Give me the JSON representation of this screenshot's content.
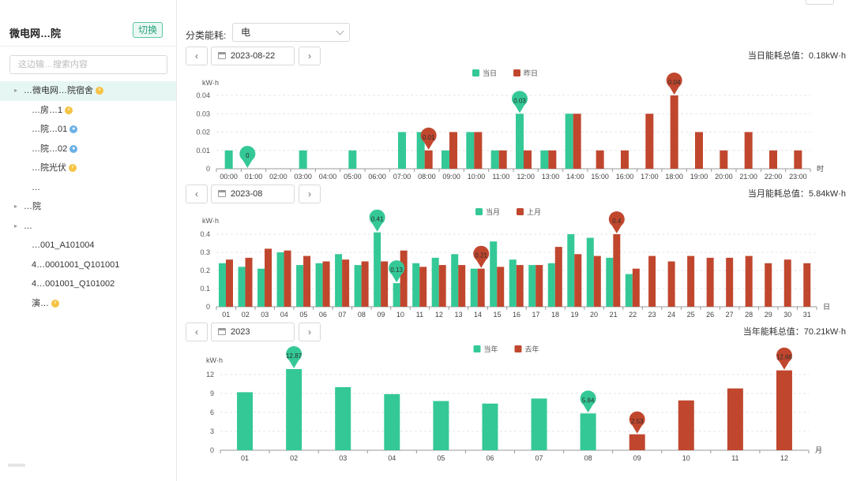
{
  "sidebar": {
    "title": "微电网…院",
    "switch_label": "切换",
    "search_placeholder": "这边输…搜索内容",
    "items": [
      {
        "label": "…微电网…院宿舍",
        "icon": "bolt-icon",
        "arrow": "▸",
        "selected": true
      },
      {
        "label": "…房…1",
        "icon": "bolt-icon"
      },
      {
        "label": "…院…01",
        "icon": "water-drop-icon"
      },
      {
        "label": "…院…02",
        "icon": "water-drop-icon"
      },
      {
        "label": "…院光伏",
        "icon": "bolt-icon"
      },
      {
        "label": "…"
      },
      {
        "label": "…院",
        "arrow": "▸"
      },
      {
        "label": "…",
        "arrow": "▸"
      },
      {
        "label": "…001_A101004"
      },
      {
        "label": "4…0001001_Q101001"
      },
      {
        "label": "4…001001_Q101002"
      },
      {
        "label": "演…",
        "icon": "bolt-icon"
      }
    ]
  },
  "filter": {
    "label": "分类能耗:",
    "value": "电"
  },
  "panels": [
    {
      "date": "2023-08-22",
      "total": "当日能耗总值：0.18kW·h"
    },
    {
      "date": "2023-08",
      "total": "当月能耗总值：5.84kW·h"
    },
    {
      "date": "2023",
      "total": "当年能耗总值：70.21kW·h"
    }
  ],
  "colors": {
    "current": "#34c897",
    "previous": "#c0472e"
  },
  "chart_data": [
    {
      "type": "bar",
      "legend": [
        "当日",
        "昨日"
      ],
      "ylabel": "kW·h",
      "xlabel": "时",
      "ylim": [
        0,
        0.04
      ],
      "yticks": [
        "0",
        "0.01",
        "0.02",
        "0.03",
        "0.04"
      ],
      "categories": [
        "00:00",
        "01:00",
        "02:00",
        "03:00",
        "04:00",
        "05:00",
        "06:00",
        "07:00",
        "08:00",
        "09:00",
        "10:00",
        "11:00",
        "12:00",
        "13:00",
        "14:00",
        "15:00",
        "16:00",
        "17:00",
        "18:00",
        "19:00",
        "20:00",
        "21:00",
        "22:00",
        "23:00"
      ],
      "series": [
        {
          "name": "当日",
          "values": [
            0.01,
            0,
            0,
            0.01,
            0,
            0.01,
            0,
            0.02,
            0.02,
            0.01,
            0.02,
            0.01,
            0.03,
            0.01,
            0.03,
            null,
            null,
            null,
            null,
            null,
            null,
            null,
            null,
            null
          ]
        },
        {
          "name": "昨日",
          "values": [
            0,
            0,
            0,
            0,
            0,
            0,
            0,
            0,
            0.01,
            0.02,
            0.02,
            0.01,
            0.01,
            0.01,
            0.03,
            0.01,
            0.01,
            0.03,
            0.04,
            0.02,
            0.01,
            0.02,
            0.01,
            0.01
          ]
        }
      ],
      "markers": [
        {
          "series": 0,
          "index": 1,
          "label": "0"
        },
        {
          "series": 1,
          "index": 8,
          "label": "0.01"
        },
        {
          "series": 0,
          "index": 12,
          "label": "0.03"
        },
        {
          "series": 1,
          "index": 18,
          "label": "0.04"
        }
      ]
    },
    {
      "type": "bar",
      "legend": [
        "当月",
        "上月"
      ],
      "ylabel": "kW·h",
      "xlabel": "日",
      "ylim": [
        0,
        0.4
      ],
      "yticks": [
        "0",
        "0.1",
        "0.2",
        "0.3",
        "0.4"
      ],
      "categories": [
        "01",
        "02",
        "03",
        "04",
        "05",
        "06",
        "07",
        "08",
        "09",
        "10",
        "11",
        "12",
        "13",
        "14",
        "15",
        "16",
        "17",
        "18",
        "19",
        "20",
        "21",
        "22",
        "23",
        "24",
        "25",
        "26",
        "27",
        "28",
        "29",
        "30",
        "31"
      ],
      "series": [
        {
          "name": "当月",
          "values": [
            0.24,
            0.22,
            0.21,
            0.3,
            0.23,
            0.24,
            0.29,
            0.23,
            0.41,
            0.13,
            0.24,
            0.27,
            0.29,
            0.21,
            0.36,
            0.26,
            0.23,
            0.24,
            0.4,
            0.38,
            0.27,
            0.18,
            null,
            null,
            null,
            null,
            null,
            null,
            null,
            null,
            null
          ]
        },
        {
          "name": "上月",
          "values": [
            0.26,
            0.27,
            0.32,
            0.31,
            0.28,
            0.25,
            0.26,
            0.25,
            0.25,
            0.31,
            0.22,
            0.23,
            0.23,
            0.21,
            0.22,
            0.23,
            0.23,
            0.33,
            0.29,
            0.28,
            0.4,
            0.21,
            0.28,
            0.25,
            0.28,
            0.27,
            0.27,
            0.28,
            0.24,
            0.26,
            0.24
          ]
        }
      ],
      "markers": [
        {
          "series": 0,
          "index": 8,
          "label": "0.41"
        },
        {
          "series": 0,
          "index": 9,
          "label": "0.13"
        },
        {
          "series": 1,
          "index": 13,
          "label": "0.21"
        },
        {
          "series": 1,
          "index": 20,
          "label": "0.4"
        }
      ]
    },
    {
      "type": "bar",
      "legend": [
        "当年",
        "去年"
      ],
      "ylabel": "kW·h",
      "xlabel": "月",
      "ylim": [
        0,
        14
      ],
      "yticks": [
        "0",
        "3",
        "6",
        "9",
        "12"
      ],
      "ytick_values": [
        0,
        3,
        6,
        9,
        12
      ],
      "categories": [
        "01",
        "02",
        "03",
        "04",
        "05",
        "06",
        "07",
        "08",
        "09",
        "10",
        "11",
        "12"
      ],
      "series": [
        {
          "name": "当年",
          "values": [
            9.2,
            12.87,
            10,
            8.9,
            7.8,
            7.4,
            8.2,
            5.84,
            null,
            null,
            null,
            null
          ]
        },
        {
          "name": "去年",
          "values": [
            null,
            null,
            null,
            null,
            null,
            null,
            null,
            null,
            2.53,
            7.9,
            9.8,
            12.66
          ]
        }
      ],
      "markers": [
        {
          "series": 0,
          "index": 1,
          "label": "12.87"
        },
        {
          "series": 0,
          "index": 7,
          "label": "5.84"
        },
        {
          "series": 1,
          "index": 8,
          "label": "2.53"
        },
        {
          "series": 1,
          "index": 11,
          "label": "12.66"
        }
      ]
    }
  ]
}
